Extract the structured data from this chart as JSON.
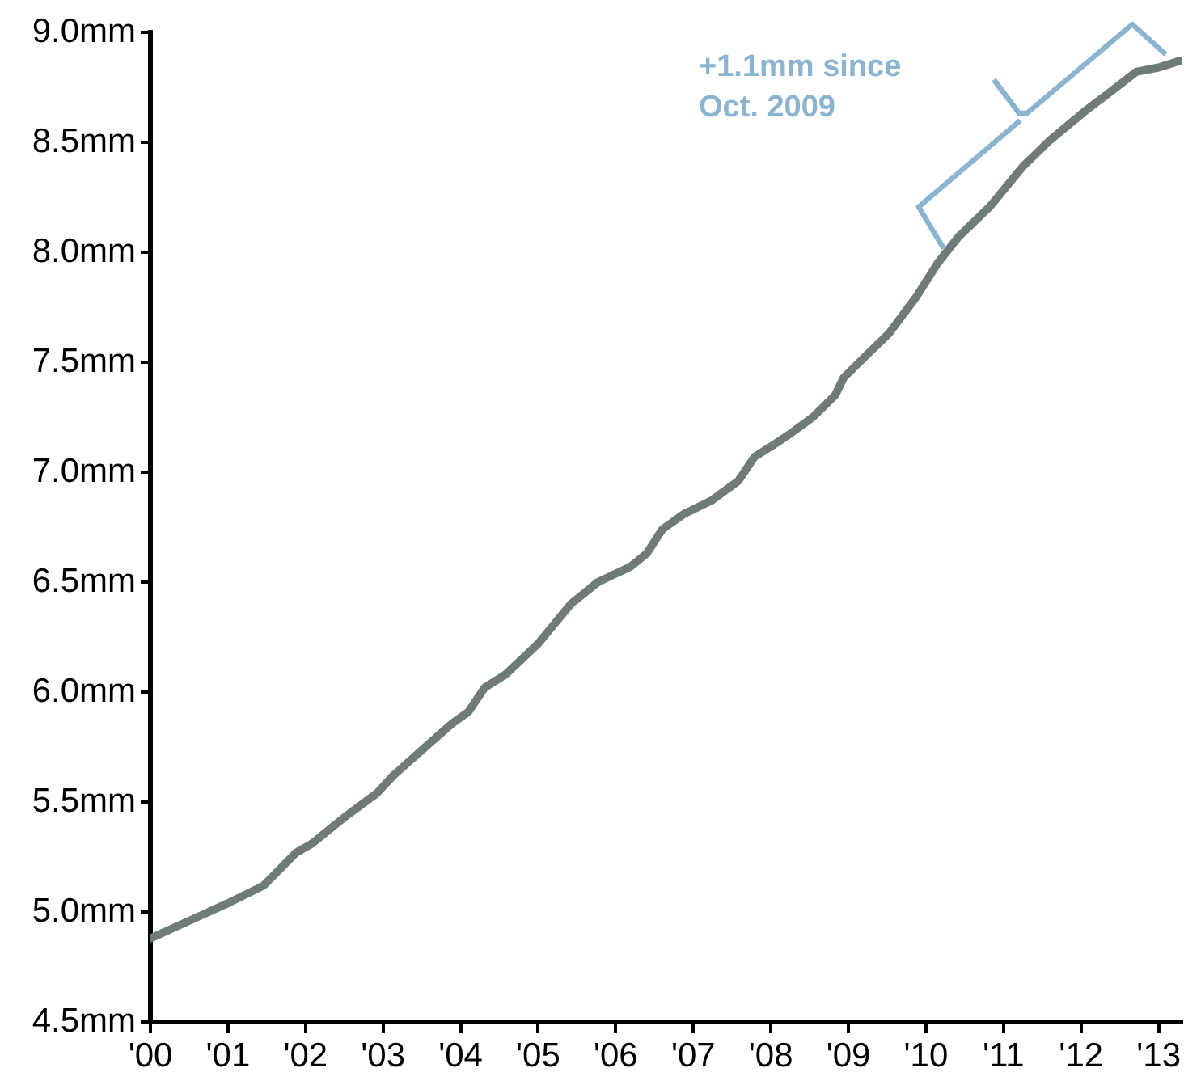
{
  "chart_data": {
    "type": "line",
    "x": [
      2000.0,
      2001.0,
      2001.46,
      2001.88,
      2002.08,
      2002.5,
      2002.92,
      2003.13,
      2003.48,
      2003.9,
      2004.1,
      2004.31,
      2004.58,
      2005.0,
      2005.42,
      2005.77,
      2006.19,
      2006.4,
      2006.6,
      2006.88,
      2007.23,
      2007.58,
      2007.79,
      2008.06,
      2008.27,
      2008.54,
      2008.83,
      2008.94,
      2009.17,
      2009.52,
      2009.69,
      2009.88,
      2010.15,
      2010.42,
      2010.83,
      2011.25,
      2011.6,
      2012.08,
      2012.38,
      2012.71,
      2013.0,
      2013.27
    ],
    "series": [
      {
        "color": "#6f7b78",
        "values": [
          4.88,
          5.04,
          5.12,
          5.27,
          5.31,
          5.43,
          5.54,
          5.62,
          5.73,
          5.86,
          5.91,
          6.02,
          6.08,
          6.22,
          6.4,
          6.5,
          6.57,
          6.63,
          6.74,
          6.81,
          6.87,
          6.96,
          7.07,
          7.13,
          7.18,
          7.25,
          7.35,
          7.43,
          7.51,
          7.63,
          7.71,
          7.8,
          7.95,
          8.07,
          8.21,
          8.39,
          8.51,
          8.65,
          8.73,
          8.82,
          8.84,
          8.87
        ]
      }
    ],
    "xlim": [
      2000,
      2013.3
    ],
    "xticks": [
      {
        "value": 2000,
        "label": "'00"
      },
      {
        "value": 2001,
        "label": "'01"
      },
      {
        "value": 2002,
        "label": "'02"
      },
      {
        "value": 2003,
        "label": "'03"
      },
      {
        "value": 2004,
        "label": "'04"
      },
      {
        "value": 2005,
        "label": "'05"
      },
      {
        "value": 2006,
        "label": "'06"
      },
      {
        "value": 2007,
        "label": "'07"
      },
      {
        "value": 2008,
        "label": "'08"
      },
      {
        "value": 2009,
        "label": "'09"
      },
      {
        "value": 2010,
        "label": "'10"
      },
      {
        "value": 2011,
        "label": "'11"
      },
      {
        "value": 2012,
        "label": "'12"
      },
      {
        "value": 2013,
        "label": "'13"
      }
    ],
    "ylim": [
      4.5,
      9.0
    ],
    "yticks": [
      {
        "value": 4.5,
        "label": "4.5mm"
      },
      {
        "value": 5.0,
        "label": "5.0mm"
      },
      {
        "value": 5.5,
        "label": "5.5mm"
      },
      {
        "value": 6.0,
        "label": "6.0mm"
      },
      {
        "value": 6.5,
        "label": "6.5mm"
      },
      {
        "value": 7.0,
        "label": "7.0mm"
      },
      {
        "value": 7.5,
        "label": "7.5mm"
      },
      {
        "value": 8.0,
        "label": "8.0mm"
      },
      {
        "value": 8.5,
        "label": "8.5mm"
      },
      {
        "value": 9.0,
        "label": "9.0mm"
      }
    ],
    "annotations": [
      "+1.1mm since Oct. 2009"
    ]
  }
}
